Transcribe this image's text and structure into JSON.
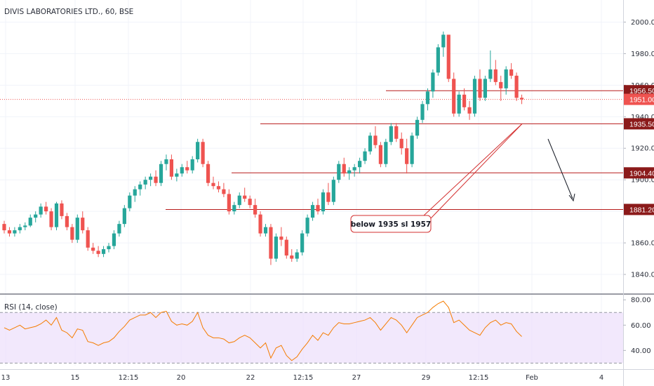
{
  "chart_data": [
    {
      "type": "candlestick",
      "title": "DIVIS LABORATORIES LTD., 60, BSE",
      "ylim": [
        1828,
        2014
      ],
      "y_ticks": [
        "2000.00",
        "1980.00",
        "1960.00",
        "1940.00",
        "1920.00",
        "1900.00",
        "1880.00",
        "1860.00",
        "1840.00"
      ],
      "x_ticks": [
        "13",
        "15",
        "12:15",
        "20",
        "22",
        "12:15",
        "27",
        "29",
        "12:15",
        "Feb",
        "4"
      ],
      "colors": {
        "up": "#26a69a",
        "down": "#ef5350",
        "level": "#b71c1c",
        "last_price_line": "#ef5350",
        "tag": "#8b1a1a"
      },
      "candles": [
        [
          1872,
          1874,
          1866,
          1868
        ],
        [
          1868,
          1870,
          1864,
          1866
        ],
        [
          1866,
          1870,
          1864,
          1868
        ],
        [
          1868,
          1872,
          1866,
          1870
        ],
        [
          1870,
          1873,
          1868,
          1871
        ],
        [
          1871,
          1878,
          1870,
          1876
        ],
        [
          1876,
          1880,
          1873,
          1878
        ],
        [
          1878,
          1885,
          1876,
          1883
        ],
        [
          1883,
          1886,
          1878,
          1880
        ],
        [
          1880,
          1882,
          1868,
          1870
        ],
        [
          1870,
          1886,
          1868,
          1885
        ],
        [
          1885,
          1887,
          1875,
          1877
        ],
        [
          1877,
          1879,
          1868,
          1870
        ],
        [
          1870,
          1872,
          1860,
          1862
        ],
        [
          1862,
          1878,
          1860,
          1876
        ],
        [
          1876,
          1880,
          1866,
          1868
        ],
        [
          1868,
          1870,
          1855,
          1857
        ],
        [
          1857,
          1860,
          1853,
          1855
        ],
        [
          1855,
          1858,
          1851,
          1853
        ],
        [
          1853,
          1858,
          1851,
          1856
        ],
        [
          1856,
          1860,
          1854,
          1858
        ],
        [
          1858,
          1868,
          1856,
          1866
        ],
        [
          1866,
          1874,
          1864,
          1872
        ],
        [
          1872,
          1884,
          1870,
          1882
        ],
        [
          1882,
          1892,
          1880,
          1890
        ],
        [
          1890,
          1896,
          1886,
          1894
        ],
        [
          1894,
          1899,
          1890,
          1897
        ],
        [
          1897,
          1902,
          1894,
          1900
        ],
        [
          1900,
          1904,
          1896,
          1902
        ],
        [
          1902,
          1906,
          1896,
          1898
        ],
        [
          1898,
          1912,
          1896,
          1910
        ],
        [
          1910,
          1916,
          1906,
          1913
        ],
        [
          1913,
          1916,
          1900,
          1902
        ],
        [
          1902,
          1907,
          1899,
          1904
        ],
        [
          1904,
          1910,
          1902,
          1908
        ],
        [
          1908,
          1912,
          1904,
          1906
        ],
        [
          1906,
          1915,
          1904,
          1913
        ],
        [
          1913,
          1926,
          1911,
          1924
        ],
        [
          1924,
          1926,
          1908,
          1910
        ],
        [
          1910,
          1912,
          1896,
          1898
        ],
        [
          1898,
          1902,
          1894,
          1896
        ],
        [
          1896,
          1899,
          1892,
          1894
        ],
        [
          1894,
          1898,
          1889,
          1891
        ],
        [
          1891,
          1894,
          1878,
          1880
        ],
        [
          1880,
          1886,
          1878,
          1884
        ],
        [
          1884,
          1892,
          1882,
          1890
        ],
        [
          1890,
          1895,
          1886,
          1888
        ],
        [
          1888,
          1890,
          1882,
          1884
        ],
        [
          1884,
          1888,
          1876,
          1878
        ],
        [
          1878,
          1880,
          1864,
          1866
        ],
        [
          1866,
          1872,
          1864,
          1870
        ],
        [
          1870,
          1872,
          1846,
          1850
        ],
        [
          1850,
          1866,
          1848,
          1864
        ],
        [
          1864,
          1870,
          1858,
          1862
        ],
        [
          1862,
          1864,
          1850,
          1852
        ],
        [
          1852,
          1856,
          1848,
          1850
        ],
        [
          1850,
          1856,
          1848,
          1854
        ],
        [
          1854,
          1868,
          1852,
          1866
        ],
        [
          1866,
          1878,
          1864,
          1876
        ],
        [
          1876,
          1886,
          1874,
          1884
        ],
        [
          1884,
          1888,
          1878,
          1880
        ],
        [
          1880,
          1894,
          1878,
          1892
        ],
        [
          1892,
          1898,
          1884,
          1886
        ],
        [
          1886,
          1902,
          1884,
          1900
        ],
        [
          1900,
          1912,
          1898,
          1910
        ],
        [
          1910,
          1914,
          1902,
          1904
        ],
        [
          1904,
          1908,
          1900,
          1906
        ],
        [
          1906,
          1910,
          1902,
          1908
        ],
        [
          1908,
          1914,
          1904,
          1912
        ],
        [
          1912,
          1920,
          1910,
          1918
        ],
        [
          1918,
          1930,
          1916,
          1928
        ],
        [
          1928,
          1934,
          1920,
          1922
        ],
        [
          1922,
          1924,
          1908,
          1910
        ],
        [
          1910,
          1926,
          1908,
          1924
        ],
        [
          1924,
          1936,
          1922,
          1934
        ],
        [
          1934,
          1936,
          1924,
          1926
        ],
        [
          1926,
          1930,
          1916,
          1920
        ],
        [
          1920,
          1926,
          1904,
          1910
        ],
        [
          1910,
          1930,
          1908,
          1928
        ],
        [
          1928,
          1940,
          1926,
          1938
        ],
        [
          1938,
          1950,
          1936,
          1948
        ],
        [
          1948,
          1958,
          1944,
          1956
        ],
        [
          1956,
          1970,
          1952,
          1968
        ],
        [
          1968,
          1986,
          1966,
          1984
        ],
        [
          1984,
          1994,
          1978,
          1992
        ],
        [
          1992,
          1992,
          1962,
          1964
        ],
        [
          1964,
          1968,
          1940,
          1942
        ],
        [
          1942,
          1956,
          1940,
          1954
        ],
        [
          1954,
          1958,
          1944,
          1946
        ],
        [
          1946,
          1950,
          1938,
          1942
        ],
        [
          1942,
          1966,
          1940,
          1964
        ],
        [
          1964,
          1970,
          1950,
          1952
        ],
        [
          1952,
          1966,
          1950,
          1964
        ],
        [
          1964,
          1982,
          1962,
          1970
        ],
        [
          1970,
          1976,
          1960,
          1962
        ],
        [
          1962,
          1966,
          1950,
          1958
        ],
        [
          1958,
          1972,
          1954,
          1970
        ],
        [
          1970,
          1974,
          1964,
          1966
        ],
        [
          1966,
          1968,
          1950,
          1952
        ],
        [
          1952,
          1954,
          1948,
          1951
        ]
      ],
      "levels": [
        {
          "value": 1956.5,
          "label": "1956.50"
        },
        {
          "value": 1935.5,
          "label": "1935.50"
        },
        {
          "value": 1904.4,
          "label": "1904.40"
        },
        {
          "value": 1881.2,
          "label": "1881.20"
        }
      ],
      "last_price": {
        "value": 1951.0,
        "label": "1951.00"
      },
      "annotation": {
        "text": "below 1935 sl 1957"
      }
    },
    {
      "type": "line",
      "title": "RSI (14, close)",
      "ylim": [
        28,
        84
      ],
      "y_ticks": [
        "80.00",
        "60.00",
        "40.00"
      ],
      "band": [
        70,
        30
      ],
      "line_color": "#f57c00",
      "band_color": "#ede0fb",
      "values": [
        58,
        56,
        58,
        60,
        57,
        58,
        59,
        61,
        64,
        60,
        66,
        56,
        54,
        50,
        57,
        56,
        47,
        46,
        44,
        46,
        47,
        50,
        55,
        59,
        64,
        66,
        68,
        68,
        70,
        66,
        70,
        71,
        63,
        60,
        61,
        60,
        63,
        70,
        58,
        52,
        50,
        50,
        49,
        46,
        47,
        50,
        52,
        50,
        46,
        42,
        46,
        34,
        42,
        44,
        36,
        32,
        35,
        41,
        46,
        52,
        48,
        54,
        52,
        58,
        62,
        61,
        61,
        62,
        63,
        64,
        66,
        62,
        56,
        61,
        66,
        64,
        60,
        54,
        60,
        66,
        68,
        70,
        74,
        77,
        79,
        74,
        62,
        64,
        60,
        56,
        54,
        52,
        58,
        62,
        64,
        60,
        62,
        61,
        55,
        51
      ]
    }
  ]
}
